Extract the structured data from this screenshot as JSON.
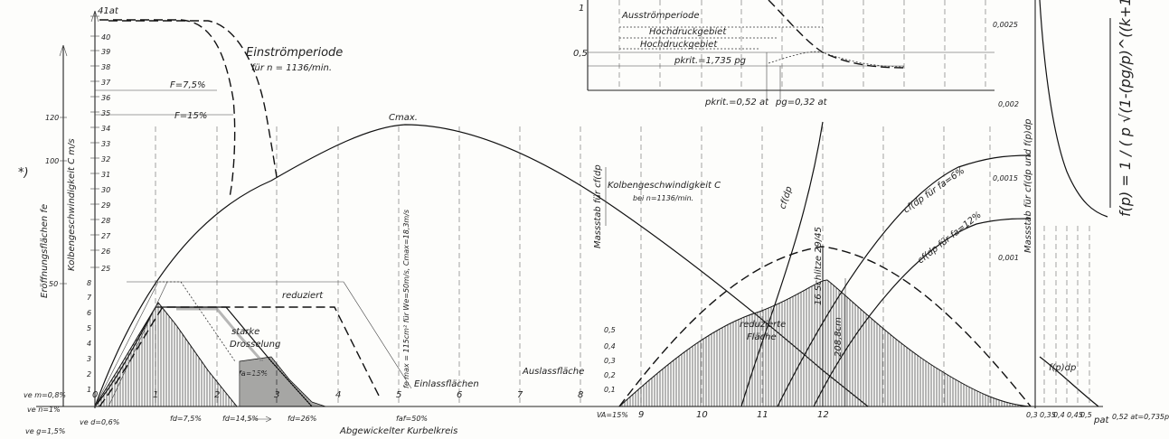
{
  "labels": {
    "top_at": "41at",
    "einstroem_1": "Einströmperiode",
    "einstroem_2": "für n = 1136/min.",
    "F75": "F=7,5%",
    "F15": "F=15%",
    "ausstroemperiode": "Ausströmperiode",
    "hochdruck1": "Hochdruckgebiet",
    "hochdruck2": "Hochdruckgebiet",
    "pkrit_top": "pkrit.=1,735 pg",
    "pkrit_bottom": "pkrit.=0,52 at",
    "pg": "pg=0,32 at",
    "cmax": "Cmax.",
    "kolben_1": "Kolbengeschwindigkeit C",
    "kolben_2": "bei n=1136/min.",
    "massstab_cfdp": "Massstab für cf(dp",
    "cfdp": "cf(dp",
    "cfdp6": "cf(dp für fa=6%",
    "cfdp12": "cf(dp für fa=12%",
    "massstab_fp": "Massstab für cf(dp und f(p)dp",
    "formula": "f(p) = 1 / ( p √(1-(pg/p)^((k+1)/k)) )",
    "schlitze": "16 Schlitze 29/45",
    "reduziert": "reduziert",
    "starke": "starke",
    "drosselung": "Drosselung",
    "fe_max": "fe max = 115cm² für We=50m/s, Cmax=18,3m/s",
    "einlassflaechen": "Einlassflächen",
    "auslassflaeche": "Auslassfläche",
    "reduzierte_1": "reduzierte",
    "reduzierte_2": "Fläche",
    "area_value": "208,8cm",
    "fa15": "fa=15%",
    "va": "VA=15%",
    "abgewickelt": "Abgewickelter Kurbelkreis",
    "pat": "pat",
    "eroeffnung": "Eröffnungsflächen fe",
    "kolben_axis": "Kolbengeschwindigkeit C m/s",
    "star": "*)",
    "fpdp": "f(p)dp",
    "fd75": "fd=7,5%",
    "fd145": "fd=14,5%",
    "fd26": "fd=26%",
    "fa50": "faf=50%",
    "ve_m": "ve m=0,8%",
    "ve_n": "ve n=1%",
    "ve_d": "ve d=0,6%",
    "ve_g": "ve g=1,5%",
    "val_0_5": "0,5",
    "val_1": "1",
    "pg_axis": "0,52 at=0,735pg"
  },
  "axes": {
    "crank": [
      "0",
      "1",
      "2",
      "3",
      "4",
      "5",
      "6",
      "7",
      "8",
      "9",
      "10",
      "11",
      "12"
    ],
    "pressure": [
      "0,3",
      "0,35",
      "0,4",
      "0,45",
      "0,5"
    ],
    "pat_scale": [
      "40",
      "39",
      "38",
      "37",
      "36",
      "35",
      "34",
      "33",
      "32",
      "31",
      "30",
      "29",
      "28",
      "27",
      "26",
      "25"
    ],
    "left_pct": [
      "120",
      "100",
      "50"
    ],
    "fp_scale": [
      "0,0025",
      "0,002",
      "0,0015",
      "0,001"
    ],
    "mid_scale": [
      "0,5",
      "0,4",
      "0,3",
      "0,2",
      "0,1"
    ],
    "left_small": [
      "8",
      "7",
      "6",
      "5",
      "4",
      "3",
      "2",
      "1"
    ]
  }
}
